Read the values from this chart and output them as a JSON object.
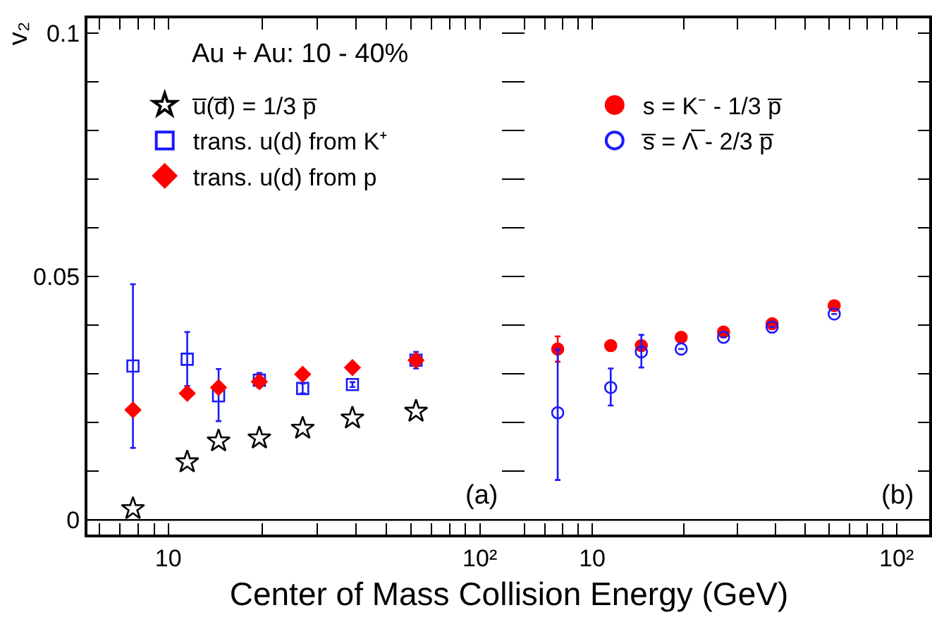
{
  "chart_data": [
    {
      "type": "scatter",
      "ylabel": "v₂",
      "xlabel": "Center of Mass Collision Energy (GeV)",
      "log": "x",
      "x": [
        7.7,
        11.5,
        14.5,
        19.6,
        27,
        39,
        62.4
      ],
      "xlim": [
        5.5,
        128
      ],
      "ylim": [
        -0.003,
        0.103
      ],
      "xticks": [
        {
          "value": 6,
          "label": null
        },
        {
          "value": 7,
          "label": null
        },
        {
          "value": 8,
          "label": null
        },
        {
          "value": 9,
          "label": null
        },
        10,
        {
          "value": 20,
          "label": null
        },
        {
          "value": 30,
          "label": null
        },
        {
          "value": 40,
          "label": null
        },
        {
          "value": 50,
          "label": null
        },
        {
          "value": 60,
          "label": null
        },
        {
          "value": 70,
          "label": null
        },
        {
          "value": 80,
          "label": null
        },
        {
          "value": 90,
          "label": null
        },
        {
          "value": 100,
          "label": "10²"
        }
      ],
      "yticks": [
        0,
        {
          "value": 0.01,
          "label": null
        },
        {
          "value": 0.02,
          "label": null
        },
        {
          "value": 0.03,
          "label": null
        },
        {
          "value": 0.04,
          "label": null
        },
        0.05,
        {
          "value": 0.06,
          "label": null
        },
        {
          "value": 0.07,
          "label": null
        },
        {
          "value": 0.08,
          "label": null
        },
        {
          "value": 0.09,
          "label": null
        },
        0.1
      ],
      "ref_lines": [
        {
          "axis": "y",
          "value": 0,
          "color": "#000000"
        }
      ],
      "annotations": [
        "Au + Au: 10 - 40%",
        "(a)"
      ],
      "legend": "top",
      "grid": false,
      "series": [
        {
          "name": "u̅(d̅) = 1/3 p̅",
          "color": "#000000",
          "marker": "star-open",
          "values": [
            0.0023,
            0.0119,
            0.0162,
            0.0168,
            0.0188,
            0.0209,
            0.0223
          ]
        },
        {
          "name": "trans. u(d) from K⁺",
          "color": "#1a1aff",
          "marker": "square-open",
          "values": [
            0.0316,
            0.033,
            0.0255,
            0.0287,
            0.027,
            0.0278,
            0.0328
          ],
          "errors": [
            [
              0.0148,
              0.0484
            ],
            [
              0.0275,
              0.0386
            ],
            [
              0.0203,
              0.031
            ],
            [
              0.0272,
              0.0302
            ],
            [
              0.026,
              0.028
            ],
            [
              0.0273,
              0.0283
            ],
            [
              0.0311,
              0.0345
            ]
          ]
        },
        {
          "name": "trans. u(d) from p",
          "color": "#ff0000",
          "marker": "diamond",
          "values": [
            0.0226,
            0.026,
            0.0272,
            0.0284,
            0.0299,
            0.0313,
            0.0328
          ]
        }
      ]
    },
    {
      "type": "scatter",
      "log": "x",
      "tick_labels": "x",
      "x": [
        7.7,
        11.5,
        14.5,
        19.6,
        27,
        39,
        62.4
      ],
      "xlim": [
        5.5,
        128
      ],
      "ylim": [
        -0.003,
        0.103
      ],
      "xticks": [
        {
          "value": 6,
          "label": null
        },
        {
          "value": 7,
          "label": null
        },
        {
          "value": 8,
          "label": null
        },
        {
          "value": 9,
          "label": null
        },
        10,
        {
          "value": 20,
          "label": null
        },
        {
          "value": 30,
          "label": null
        },
        {
          "value": 40,
          "label": null
        },
        {
          "value": 50,
          "label": null
        },
        {
          "value": 60,
          "label": null
        },
        {
          "value": 70,
          "label": null
        },
        {
          "value": 80,
          "label": null
        },
        {
          "value": 90,
          "label": null
        },
        {
          "value": 100,
          "label": "10²"
        }
      ],
      "yticks": [
        0,
        {
          "value": 0.01,
          "label": null
        },
        {
          "value": 0.02,
          "label": null
        },
        {
          "value": 0.03,
          "label": null
        },
        {
          "value": 0.04,
          "label": null
        },
        0.05,
        {
          "value": 0.06,
          "label": null
        },
        {
          "value": 0.07,
          "label": null
        },
        {
          "value": 0.08,
          "label": null
        },
        {
          "value": 0.09,
          "label": null
        },
        0.1
      ],
      "ref_lines": [
        {
          "axis": "y",
          "value": 0,
          "color": "#000000"
        }
      ],
      "annotations": [
        "(b)"
      ],
      "legend": "top",
      "grid": false,
      "series": [
        {
          "name": "s = K⁻ - 1/3 p̅",
          "color": "#ff0000",
          "marker": "circle",
          "values": [
            0.0351,
            0.0358,
            0.0358,
            0.0375,
            0.0386,
            0.0403,
            0.044
          ],
          "errors": [
            [
              0.0325,
              0.0377
            ],
            null,
            null,
            null,
            null,
            null,
            null
          ]
        },
        {
          "name": "s̅ = Λ̅ - 2/3 p̅",
          "color": "#1a1aff",
          "marker": "circle-open",
          "values": [
            0.022,
            0.0272,
            0.0345,
            0.0351,
            0.0375,
            0.0396,
            0.0423
          ],
          "errors": [
            [
              0.0082,
              0.035
            ],
            [
              0.0235,
              0.0311
            ],
            [
              0.0313,
              0.038
            ],
            null,
            null,
            null,
            null
          ]
        }
      ]
    }
  ]
}
